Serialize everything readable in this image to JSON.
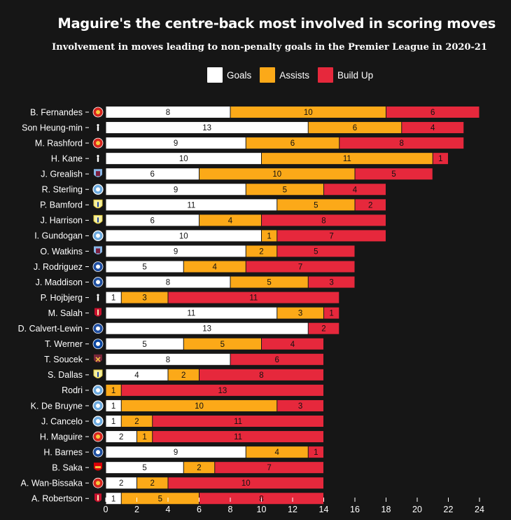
{
  "header": {
    "title": "Maguire's the centre-back most involved in scoring moves",
    "subtitle": "Involvement in moves leading to non-penalty goals in the Premier League in 2020-21"
  },
  "legend": [
    {
      "label": "Goals",
      "color": "#ffffff"
    },
    {
      "label": "Assists",
      "color": "#fca918"
    },
    {
      "label": "Build Up",
      "color": "#e6283c"
    }
  ],
  "chart_data": {
    "type": "bar",
    "orientation": "horizontal",
    "stacked": true,
    "title": "Maguire's the centre-back most involved in scoring moves",
    "subtitle": "Involvement in moves leading to non-penalty goals in the Premier League in 2020-21",
    "xlim": [
      0,
      24
    ],
    "xticks": [
      0,
      2,
      4,
      6,
      8,
      10,
      12,
      14,
      16,
      18,
      20,
      22,
      24
    ],
    "legend_position": "top",
    "categories": [
      "B. Fernandes",
      "Son Heung-min",
      "M. Rashford",
      "H. Kane",
      "J. Grealish",
      "R. Sterling",
      "P. Bamford",
      "J. Harrison",
      "I. Gundogan",
      "O. Watkins",
      "J. Rodriguez",
      "J. Maddison",
      "P. Hojbjerg",
      "M. Salah",
      "D. Calvert-Lewin",
      "T. Werner",
      "T. Soucek",
      "S. Dallas",
      "Rodri",
      "K. De Bruyne",
      "J. Cancelo",
      "H. Maguire",
      "H. Barnes",
      "B. Saka",
      "A. Wan-Bissaka",
      "A. Robertson"
    ],
    "clubs": [
      "man-utd",
      "spurs",
      "man-utd",
      "spurs",
      "aston-villa",
      "man-city",
      "leeds",
      "leeds",
      "man-city",
      "aston-villa",
      "everton",
      "leicester",
      "spurs",
      "liverpool",
      "everton",
      "chelsea",
      "west-ham",
      "leeds",
      "man-city",
      "man-city",
      "man-city",
      "man-utd",
      "leicester",
      "arsenal",
      "man-utd",
      "liverpool"
    ],
    "series": [
      {
        "name": "Goals",
        "color": "#ffffff",
        "values": [
          8,
          13,
          9,
          10,
          6,
          9,
          11,
          6,
          10,
          9,
          5,
          8,
          1,
          11,
          13,
          5,
          8,
          4,
          0,
          1,
          1,
          2,
          9,
          5,
          2,
          1
        ]
      },
      {
        "name": "Assists",
        "color": "#fca918",
        "values": [
          10,
          6,
          6,
          11,
          10,
          5,
          5,
          4,
          1,
          2,
          4,
          5,
          3,
          3,
          0,
          5,
          0,
          2,
          1,
          10,
          2,
          1,
          4,
          2,
          2,
          5
        ]
      },
      {
        "name": "Build Up",
        "color": "#e6283c",
        "values": [
          6,
          4,
          8,
          1,
          5,
          4,
          2,
          8,
          7,
          5,
          7,
          3,
          11,
          1,
          2,
          4,
          6,
          8,
          13,
          3,
          11,
          11,
          1,
          7,
          10,
          8
        ]
      }
    ]
  },
  "club_colors": {
    "man-utd": "#d7251d",
    "spurs": "#1b2a5b",
    "aston-villa": "#7b1d3e",
    "man-city": "#6caadf",
    "leeds": "#e8d54a",
    "everton": "#1f4ea1",
    "leicester": "#1f4f9f",
    "liverpool": "#c8102e",
    "chelsea": "#0a46a0",
    "west-ham": "#7a263a",
    "arsenal": "#db0007"
  }
}
